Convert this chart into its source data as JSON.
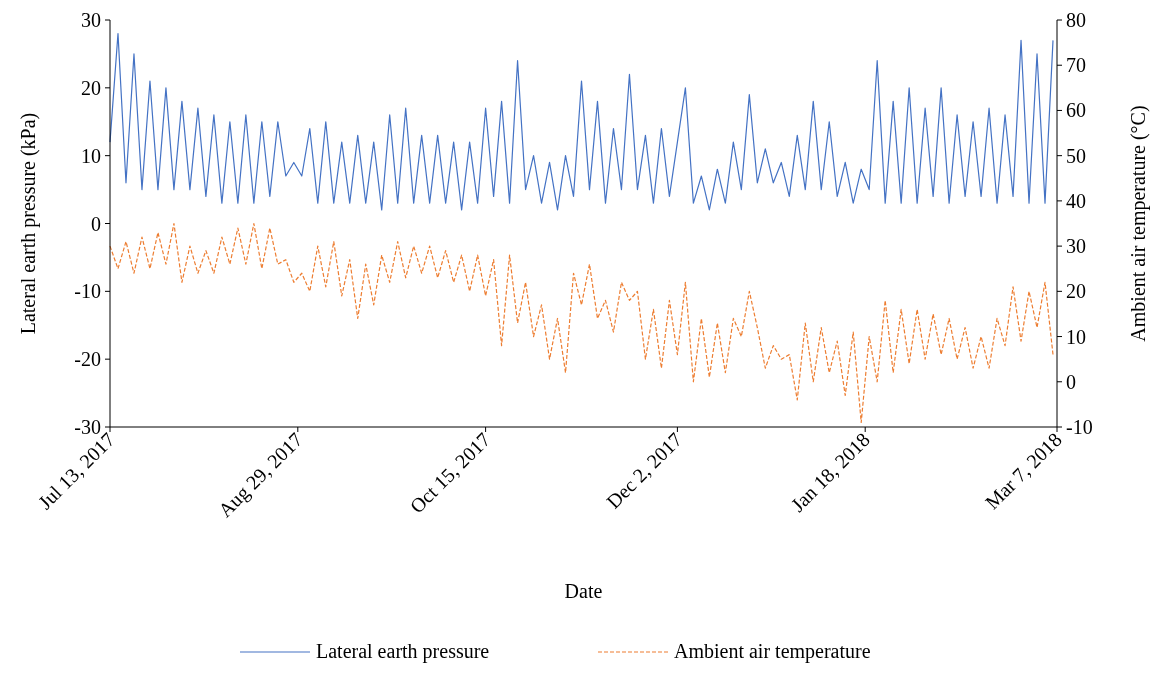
{
  "chart_data": {
    "type": "line",
    "xlabel": "Date",
    "ylabel": "Lateral earth pressure (kPa)",
    "y2label": "Ambient air temperature (°C)",
    "x": [
      "2017-07-13",
      "2017-07-15",
      "2017-07-17",
      "2017-07-19",
      "2017-07-21",
      "2017-07-23",
      "2017-07-25",
      "2017-07-27",
      "2017-07-29",
      "2017-07-31",
      "2017-08-02",
      "2017-08-04",
      "2017-08-06",
      "2017-08-08",
      "2017-08-10",
      "2017-08-12",
      "2017-08-14",
      "2017-08-16",
      "2017-08-18",
      "2017-08-20",
      "2017-08-22",
      "2017-08-24",
      "2017-08-26",
      "2017-08-28",
      "2017-08-30",
      "2017-09-01",
      "2017-09-03",
      "2017-09-05",
      "2017-09-07",
      "2017-09-09",
      "2017-09-11",
      "2017-09-13",
      "2017-09-15",
      "2017-09-17",
      "2017-09-19",
      "2017-09-21",
      "2017-09-23",
      "2017-09-25",
      "2017-09-27",
      "2017-09-29",
      "2017-10-01",
      "2017-10-03",
      "2017-10-05",
      "2017-10-07",
      "2017-10-09",
      "2017-10-11",
      "2017-10-13",
      "2017-10-15",
      "2017-10-17",
      "2017-10-19",
      "2017-10-21",
      "2017-10-23",
      "2017-10-25",
      "2017-10-27",
      "2017-10-29",
      "2017-10-31",
      "2017-11-02",
      "2017-11-04",
      "2017-11-06",
      "2017-11-08",
      "2017-11-10",
      "2017-11-12",
      "2017-11-14",
      "2017-11-16",
      "2017-11-18",
      "2017-11-20",
      "2017-11-22",
      "2017-11-24",
      "2017-11-26",
      "2017-11-28",
      "2017-11-30",
      "2017-12-02",
      "2017-12-04",
      "2017-12-06",
      "2017-12-08",
      "2017-12-10",
      "2017-12-12",
      "2017-12-14",
      "2017-12-16",
      "2017-12-18",
      "2017-12-20",
      "2017-12-22",
      "2017-12-24",
      "2017-12-26",
      "2017-12-28",
      "2017-12-30",
      "2018-01-01",
      "2018-01-03",
      "2018-01-05",
      "2018-01-07",
      "2018-01-09",
      "2018-01-11",
      "2018-01-13",
      "2018-01-15",
      "2018-01-17",
      "2018-01-19",
      "2018-01-21",
      "2018-01-23",
      "2018-01-25",
      "2018-01-27",
      "2018-01-29",
      "2018-01-31",
      "2018-02-02",
      "2018-02-04",
      "2018-02-06",
      "2018-02-08",
      "2018-02-10",
      "2018-02-12",
      "2018-02-14",
      "2018-02-16",
      "2018-02-18",
      "2018-02-20",
      "2018-02-22",
      "2018-02-24",
      "2018-02-26",
      "2018-02-28",
      "2018-03-02",
      "2018-03-04",
      "2018-03-06"
    ],
    "series": [
      {
        "name": "Lateral earth pressure",
        "color": "#4472c4",
        "line_style": "solid",
        "values": [
          12,
          28,
          6,
          25,
          5,
          21,
          5,
          20,
          5,
          18,
          5,
          17,
          4,
          16,
          3,
          15,
          3,
          16,
          3,
          15,
          4,
          15,
          7,
          9,
          7,
          14,
          3,
          15,
          3,
          12,
          3,
          13,
          3,
          12,
          2,
          16,
          3,
          17,
          3,
          13,
          3,
          13,
          3,
          12,
          2,
          12,
          3,
          17,
          4,
          18,
          3,
          24,
          5,
          10,
          3,
          9,
          2,
          10,
          4,
          21,
          5,
          18,
          3,
          14,
          5,
          22,
          5,
          13,
          3,
          14,
          4,
          12,
          20,
          3,
          7,
          2,
          8,
          3,
          12,
          5,
          19,
          6,
          11,
          6,
          9,
          4,
          13,
          5,
          18,
          5,
          15,
          4,
          9,
          3,
          8,
          5,
          24,
          3,
          18,
          3,
          20,
          3,
          17,
          4,
          20,
          3,
          16,
          4,
          15,
          4,
          17,
          3,
          16,
          4,
          27,
          3,
          25,
          3,
          27
        ]
      },
      {
        "name": "Ambient air temperature",
        "color": "#ed7d31",
        "line_style": "dashed",
        "axis": "y2",
        "values": [
          30,
          25,
          31,
          24,
          32,
          25,
          33,
          26,
          35,
          22,
          30,
          24,
          29,
          24,
          32,
          26,
          34,
          26,
          35,
          25,
          34,
          26,
          27,
          22,
          24,
          20,
          30,
          21,
          31,
          19,
          27,
          14,
          26,
          17,
          28,
          22,
          31,
          23,
          30,
          24,
          30,
          23,
          29,
          22,
          28,
          20,
          28,
          19,
          27,
          8,
          28,
          13,
          22,
          10,
          17,
          5,
          14,
          2,
          24,
          17,
          26,
          14,
          18,
          11,
          22,
          18,
          20,
          5,
          16,
          3,
          18,
          6,
          22,
          0,
          14,
          1,
          13,
          2,
          14,
          10,
          20,
          12,
          3,
          8,
          5,
          6,
          -4,
          13,
          0,
          12,
          2,
          9,
          -3,
          11,
          -9,
          10,
          0,
          18,
          2,
          16,
          4,
          16,
          5,
          15,
          6,
          14,
          5,
          12,
          3,
          10,
          3,
          14,
          8,
          21,
          9,
          20,
          12,
          22,
          6
        ]
      }
    ],
    "xlim": [
      "2017-07-13",
      "2018-03-07"
    ],
    "xticks": [
      {
        "value": "2017-07-13",
        "label": "Jul 13, 2017"
      },
      {
        "value": "2017-08-29",
        "label": "Aug 29, 2017"
      },
      {
        "value": "2017-10-15",
        "label": "Oct 15, 2017"
      },
      {
        "value": "2017-12-02",
        "label": "Dec 2, 2017"
      },
      {
        "value": "2018-01-18",
        "label": "Jan 18, 2018"
      },
      {
        "value": "2018-03-07",
        "label": "Mar 7, 2018"
      }
    ],
    "ylim": [
      -30,
      30
    ],
    "yticks": [
      -30,
      -20,
      -10,
      0,
      10,
      20,
      30
    ],
    "y2lim": [
      -10,
      80
    ],
    "y2ticks": [
      -10,
      0,
      10,
      20,
      30,
      40,
      50,
      60,
      70,
      80
    ],
    "legend": "bottom",
    "grid": false
  }
}
